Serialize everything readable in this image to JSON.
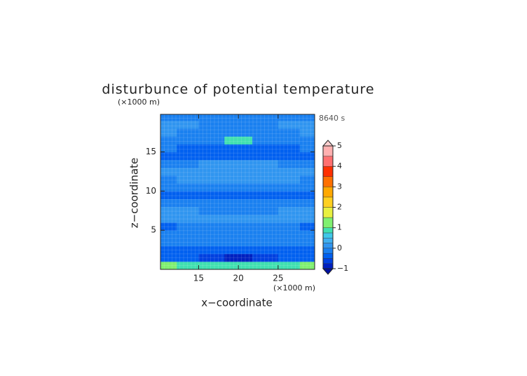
{
  "chart_data": {
    "type": "contour",
    "title": "disturbunce of potential temperature",
    "time_label": "8640 s",
    "x_label": "x−coordinate",
    "y_label": "z−coordinate",
    "x_unit": "(×1000 m)",
    "y_unit": "(×1000 m)",
    "xlim": [
      10.2,
      29.6
    ],
    "ylim": [
      0,
      19.8
    ],
    "xticks": [
      15,
      20,
      25
    ],
    "yticks": [
      5,
      10,
      15
    ],
    "x": [
      11,
      13.5,
      16.5,
      20,
      23.5,
      26.5,
      29
    ],
    "z": [
      0.5,
      1.5,
      2.5,
      3.5,
      4.5,
      5.5,
      6.5,
      7.5,
      8.5,
      9.5,
      10.5,
      11.5,
      12.5,
      13.5,
      14.5,
      15.5,
      16.5,
      17.5,
      18.5,
      19.5
    ],
    "values": [
      [
        1.2,
        0.9,
        0.8,
        0.8,
        0.8,
        0.9,
        1.2
      ],
      [
        -0.4,
        -0.5,
        -0.6,
        -0.8,
        -0.6,
        -0.5,
        -0.4
      ],
      [
        -0.3,
        -0.3,
        -0.4,
        -0.4,
        -0.4,
        -0.3,
        -0.3
      ],
      [
        -0.2,
        -0.2,
        -0.2,
        -0.2,
        -0.2,
        -0.2,
        -0.2
      ],
      [
        -0.1,
        -0.2,
        -0.2,
        -0.2,
        -0.2,
        -0.2,
        -0.1
      ],
      [
        -0.3,
        -0.1,
        -0.1,
        -0.1,
        -0.1,
        -0.1,
        -0.3
      ],
      [
        0.1,
        0.1,
        0.1,
        0.1,
        0.1,
        0.1,
        0.1
      ],
      [
        0.1,
        0.1,
        -0.1,
        -0.1,
        -0.1,
        0.1,
        0.1
      ],
      [
        -0.2,
        -0.2,
        -0.2,
        -0.2,
        -0.2,
        -0.2,
        -0.2
      ],
      [
        -0.3,
        -0.3,
        -0.3,
        -0.3,
        -0.3,
        -0.3,
        -0.3
      ],
      [
        -0.2,
        -0.2,
        -0.2,
        -0.1,
        -0.2,
        -0.2,
        -0.2
      ],
      [
        -0.1,
        0.1,
        0.1,
        0.1,
        0.1,
        0.1,
        -0.1
      ],
      [
        0.1,
        0.1,
        0.1,
        0.1,
        0.1,
        0.1,
        0.1
      ],
      [
        -0.2,
        -0.1,
        0.1,
        0.1,
        0.1,
        -0.1,
        -0.2
      ],
      [
        -0.3,
        -0.3,
        -0.3,
        -0.3,
        -0.3,
        -0.3,
        -0.3
      ],
      [
        -0.2,
        -0.3,
        -0.3,
        -0.3,
        -0.3,
        -0.3,
        -0.2
      ],
      [
        -0.1,
        -0.2,
        -0.1,
        0.8,
        -0.1,
        -0.2,
        -0.1
      ],
      [
        0.1,
        -0.1,
        -0.1,
        -0.1,
        -0.1,
        -0.1,
        0.1
      ],
      [
        0.1,
        0.1,
        -0.1,
        -0.1,
        -0.1,
        0.1,
        0.1
      ],
      [
        -0.2,
        -0.2,
        -0.2,
        -0.2,
        -0.2,
        -0.2,
        -0.2
      ]
    ],
    "colorbar": {
      "levels": [
        -1,
        -0.75,
        -0.5,
        -0.25,
        0,
        0.25,
        0.5,
        0.75,
        1,
        1.5,
        2,
        2.5,
        3,
        3.5,
        4,
        4.5,
        5
      ],
      "colors": [
        "#0020c0",
        "#0040e0",
        "#0060f0",
        "#1a80f0",
        "#3095f0",
        "#40b0f0",
        "#40c8e8",
        "#40e0b0",
        "#80f070",
        "#e8f040",
        "#ffd020",
        "#ffa800",
        "#ff7000",
        "#ff3000",
        "#ff7070",
        "#ffb0b0"
      ],
      "under_color": "#0010a0",
      "over_color": "#ffd0d0",
      "ticks": [
        {
          "value": -1,
          "label": "−1"
        },
        0,
        1,
        2,
        3,
        4,
        5
      ]
    }
  }
}
